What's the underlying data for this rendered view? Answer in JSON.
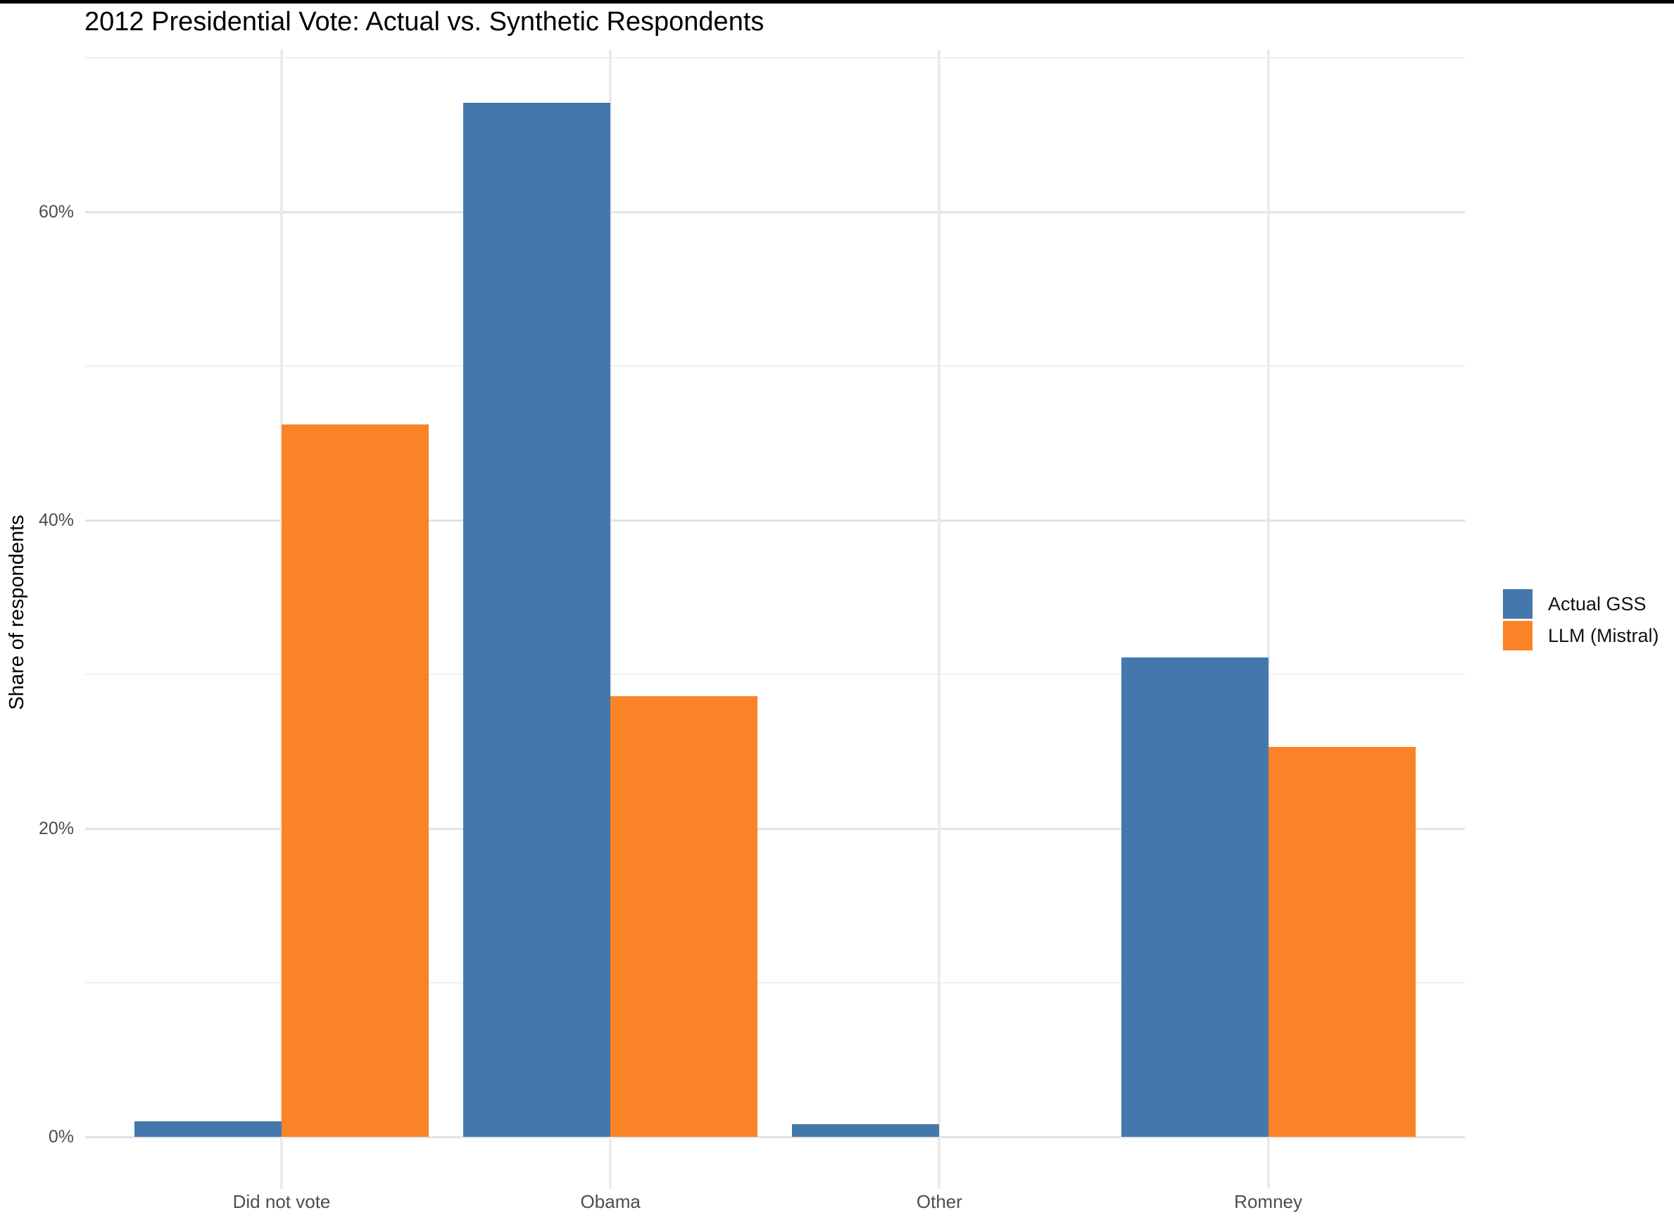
{
  "chart_data": {
    "type": "bar",
    "title": "2012 Presidential Vote: Actual vs. Synthetic Respondents",
    "xlabel": "",
    "ylabel": "Share of respondents",
    "categories": [
      "Did not vote",
      "Obama",
      "Other",
      "Romney"
    ],
    "series": [
      {
        "name": "Actual GSS",
        "color": "#4478AC",
        "values": [
          1.0,
          67.1,
          0.8,
          31.1
        ]
      },
      {
        "name": "LLM (Mistral)",
        "color": "#FA8328",
        "values": [
          46.2,
          28.6,
          0.0,
          25.3
        ]
      }
    ],
    "unit": "%",
    "ylim": [
      0,
      70
    ],
    "y_major_ticks": [
      {
        "value": 0,
        "label": "0%"
      },
      {
        "value": 20,
        "label": "20%"
      },
      {
        "value": 40,
        "label": "40%"
      },
      {
        "value": 60,
        "label": "60%"
      }
    ],
    "y_minor_ticks": [
      10,
      30,
      50,
      70
    ],
    "grid": "horizontal majors and minors, vertical line at each category center",
    "legend_position": "right-center",
    "bar_layout": "dodged pairs flush at category center"
  },
  "page": {
    "background_color": "#ffffff",
    "top_border_color": "#000000",
    "axis_text_color": "#4d4d4d"
  }
}
